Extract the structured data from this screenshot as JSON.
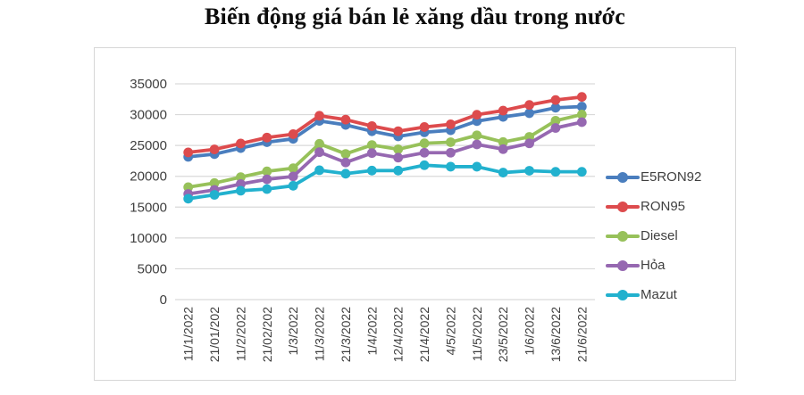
{
  "page": {
    "background_color": "#ffffff",
    "title_color": "#0d0d0d"
  },
  "chart_data": {
    "type": "line",
    "title": "Biến động giá bán lẻ xăng dầu trong nước",
    "categories": [
      "11/1/2022",
      "21/01/202",
      "11/2/2022",
      "21/02/202",
      "1/3/2022",
      "11/3/2022",
      "21/3/2022",
      "1/4/2022",
      "12/4/2022",
      "21/4/2022",
      "4/5/2022",
      "11/5/2022",
      "23/5/2022",
      "1/6/2022",
      "13/6/2022",
      "21/6/2022"
    ],
    "series": [
      {
        "name": "E5RON92",
        "color": "#4a7ebe",
        "values": [
          23159,
          23595,
          24571,
          25532,
          26077,
          28985,
          28330,
          27309,
          26470,
          27134,
          27468,
          28950,
          29633,
          30235,
          31117,
          31302
        ]
      },
      {
        "name": "RON95",
        "color": "#dd4b4d",
        "values": [
          23876,
          24360,
          25322,
          26287,
          26834,
          29824,
          29192,
          28153,
          27317,
          27992,
          28434,
          29988,
          30657,
          31578,
          32375,
          32873
        ]
      },
      {
        "name": "Diesel",
        "color": "#97c15a",
        "values": [
          18239,
          18903,
          19865,
          20801,
          21310,
          25268,
          23633,
          25080,
          24380,
          25359,
          25530,
          26650,
          25553,
          26394,
          29020,
          30019
        ]
      },
      {
        "name": "Hỏa",
        "color": "#9668b1",
        "values": [
          17138,
          17793,
          18751,
          19509,
          19978,
          23918,
          22245,
          23764,
          23027,
          23828,
          23828,
          25168,
          24405,
          25346,
          27839,
          28785
        ]
      },
      {
        "name": "Mazut",
        "color": "#22b1ce",
        "values": [
          16362,
          16993,
          17659,
          17932,
          18468,
          20987,
          20423,
          20929,
          20929,
          21800,
          21560,
          21560,
          20598,
          20901,
          20735,
          20735
        ]
      }
    ],
    "y_axis": {
      "min": 0,
      "max": 35000,
      "step": 5000,
      "ticks": [
        35000,
        30000,
        25000,
        20000,
        15000,
        10000,
        5000,
        0
      ]
    },
    "x_label_rotation_degrees": -90,
    "grid": true,
    "legend_position": "right",
    "gridline_color": "#d9d9d9",
    "axis_label_color": "#3f3f3f"
  }
}
